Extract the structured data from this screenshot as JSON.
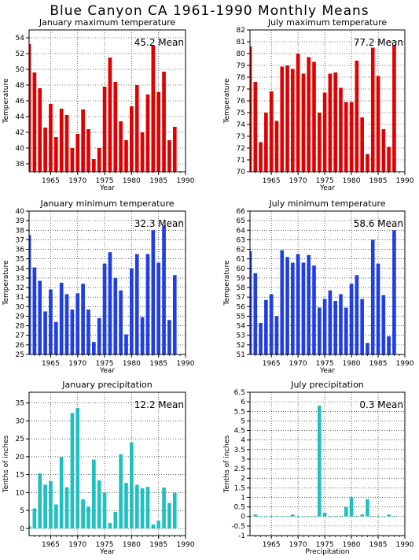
{
  "page": {
    "title": "Blue Canyon CA  1961-1990 Monthly Means"
  },
  "chart_data": [
    {
      "id": "jan-max",
      "type": "bar",
      "title": "January maximum temperature",
      "xlabel": "Year",
      "ylabel": "Temperature",
      "mean_label": "45.2 Mean",
      "color": "#e00000",
      "x": [
        1961,
        1962,
        1963,
        1964,
        1965,
        1966,
        1967,
        1968,
        1969,
        1970,
        1971,
        1972,
        1973,
        1974,
        1975,
        1976,
        1977,
        1978,
        1979,
        1980,
        1981,
        1982,
        1983,
        1984,
        1985,
        1986,
        1987,
        1988
      ],
      "values": [
        53.2,
        49.6,
        47.6,
        42.6,
        45.6,
        41.4,
        45.0,
        44.2,
        40.0,
        41.8,
        44.9,
        42.4,
        38.6,
        40.0,
        47.8,
        51.5,
        48.4,
        43.4,
        41.0,
        45.3,
        48.0,
        42.0,
        46.8,
        53.0,
        47.1,
        49.7,
        41.0,
        42.7
      ],
      "xlim": [
        1961,
        1990
      ],
      "ylim": [
        37,
        55
      ],
      "xticks": [
        1965,
        1970,
        1975,
        1980,
        1985,
        1990
      ],
      "yticks": [
        38,
        40,
        42,
        44,
        46,
        48,
        50,
        52,
        54
      ]
    },
    {
      "id": "jul-max",
      "type": "bar",
      "title": "July maximum temperature",
      "xlabel": "Year",
      "ylabel": "Temperature",
      "mean_label": "77.2 Mean",
      "color": "#e00000",
      "x": [
        1961,
        1962,
        1963,
        1964,
        1965,
        1966,
        1967,
        1968,
        1969,
        1970,
        1971,
        1972,
        1973,
        1974,
        1975,
        1976,
        1977,
        1978,
        1979,
        1980,
        1981,
        1982,
        1983,
        1984,
        1985,
        1986,
        1987,
        1988
      ],
      "values": [
        80.6,
        77.6,
        72.5,
        75.0,
        76.8,
        74.3,
        78.9,
        79.0,
        78.7,
        80.0,
        78.3,
        79.7,
        79.3,
        75.0,
        76.7,
        78.3,
        78.4,
        77.1,
        75.9,
        75.9,
        79.4,
        74.6,
        71.5,
        80.5,
        78.1,
        73.6,
        72.1,
        80.7
      ],
      "xlim": [
        1961,
        1990
      ],
      "ylim": [
        70,
        82
      ],
      "xticks": [
        1965,
        1970,
        1975,
        1980,
        1985,
        1990
      ],
      "yticks": [
        70,
        71,
        72,
        73,
        74,
        75,
        76,
        77,
        78,
        79,
        80,
        81,
        82
      ]
    },
    {
      "id": "jan-min",
      "type": "bar",
      "title": "January minimum temperature",
      "xlabel": "Year",
      "ylabel": "Temperature",
      "mean_label": "32.3 Mean",
      "color": "#1f3fe0",
      "x": [
        1961,
        1962,
        1963,
        1964,
        1965,
        1966,
        1967,
        1968,
        1969,
        1970,
        1971,
        1972,
        1973,
        1974,
        1975,
        1976,
        1977,
        1978,
        1979,
        1980,
        1981,
        1982,
        1983,
        1984,
        1985,
        1986,
        1987,
        1988
      ],
      "values": [
        37.5,
        34.1,
        32.7,
        29.5,
        31.8,
        28.4,
        32.5,
        31.3,
        29.7,
        31.4,
        32.4,
        29.7,
        26.3,
        28.8,
        34.5,
        35.7,
        33.0,
        31.7,
        27.1,
        34.0,
        35.5,
        28.9,
        35.5,
        38.0,
        34.6,
        38.5,
        28.6,
        33.3
      ],
      "xlim": [
        1961,
        1990
      ],
      "ylim": [
        25,
        40
      ],
      "xticks": [
        1965,
        1970,
        1975,
        1980,
        1985,
        1990
      ],
      "yticks": [
        25,
        26,
        27,
        28,
        29,
        30,
        31,
        32,
        33,
        34,
        35,
        36,
        37,
        38,
        39,
        40
      ]
    },
    {
      "id": "jul-min",
      "type": "bar",
      "title": "July minimum temperature",
      "xlabel": "Year",
      "ylabel": "Temperature",
      "mean_label": "58.6 Mean",
      "color": "#1f3fe0",
      "x": [
        1961,
        1962,
        1963,
        1964,
        1965,
        1966,
        1967,
        1968,
        1969,
        1970,
        1971,
        1972,
        1973,
        1974,
        1975,
        1976,
        1977,
        1978,
        1979,
        1980,
        1981,
        1982,
        1983,
        1984,
        1985,
        1986,
        1987,
        1988
      ],
      "values": [
        61.8,
        59.5,
        54.3,
        56.7,
        57.3,
        55.0,
        61.9,
        61.2,
        60.6,
        61.5,
        60.6,
        61.4,
        60.3,
        55.9,
        56.8,
        57.7,
        56.6,
        57.3,
        55.9,
        58.4,
        59.3,
        56.8,
        52.2,
        63.0,
        60.5,
        57.2,
        52.9,
        64.0
      ],
      "xlim": [
        1961,
        1990
      ],
      "ylim": [
        51,
        66
      ],
      "xticks": [
        1965,
        1970,
        1975,
        1980,
        1985,
        1990
      ],
      "yticks": [
        51,
        52,
        53,
        54,
        55,
        56,
        57,
        58,
        59,
        60,
        61,
        62,
        63,
        64,
        65,
        66
      ]
    },
    {
      "id": "jan-precip",
      "type": "bar",
      "title": "January precipitation",
      "xlabel": "Year",
      "ylabel": "Tenths of inches",
      "mean_label": "12.2 Mean",
      "color": "#20c0c0",
      "x": [
        1961,
        1962,
        1963,
        1964,
        1965,
        1966,
        1967,
        1968,
        1969,
        1970,
        1971,
        1972,
        1973,
        1974,
        1975,
        1976,
        1977,
        1978,
        1979,
        1980,
        1981,
        1982,
        1983,
        1984,
        1985,
        1986,
        1987,
        1988
      ],
      "values": [
        0.6,
        5.6,
        15.4,
        12.2,
        13.2,
        6.7,
        19.9,
        11.5,
        32.2,
        33.6,
        8.1,
        6.1,
        19.2,
        13.4,
        10.0,
        1.5,
        4.6,
        20.7,
        12.7,
        24.0,
        12.2,
        11.2,
        11.6,
        1.1,
        2.1,
        11.4,
        7.1,
        9.9
      ],
      "xlim": [
        1961,
        1990
      ],
      "ylim": [
        -2,
        38
      ],
      "xticks": [
        1965,
        1970,
        1975,
        1980,
        1985,
        1990
      ],
      "yticks": [
        0,
        5,
        10,
        15,
        20,
        25,
        30,
        35
      ]
    },
    {
      "id": "jul-precip",
      "type": "bar",
      "title": "July precipitation",
      "xlabel": "Precipitation",
      "ylabel": "Tenths of inches",
      "mean_label": "0.3 Mean",
      "color": "#20c0c0",
      "x": [
        1961,
        1962,
        1963,
        1964,
        1965,
        1966,
        1967,
        1968,
        1969,
        1970,
        1971,
        1972,
        1973,
        1974,
        1975,
        1976,
        1977,
        1978,
        1979,
        1980,
        1981,
        1982,
        1983,
        1984,
        1985,
        1986,
        1987,
        1988
      ],
      "values": [
        0.0,
        0.1,
        0.0,
        0.0,
        0.0,
        0.0,
        0.0,
        0.0,
        0.1,
        0.0,
        0.0,
        0.0,
        0.0,
        5.8,
        0.2,
        0.0,
        0.0,
        0.0,
        0.5,
        1.0,
        0.0,
        0.1,
        0.9,
        0.0,
        0.0,
        0.0,
        0.1,
        0.0
      ],
      "xlim": [
        1961,
        1990
      ],
      "ylim": [
        -1,
        6.5
      ],
      "xticks": [
        1965,
        1970,
        1975,
        1980,
        1985,
        1990
      ],
      "yticks": [
        -1,
        -0.5,
        0,
        0.5,
        1,
        1.5,
        2,
        2.5,
        3,
        3.5,
        4,
        4.5,
        5,
        5.5,
        6,
        6.5
      ]
    }
  ]
}
